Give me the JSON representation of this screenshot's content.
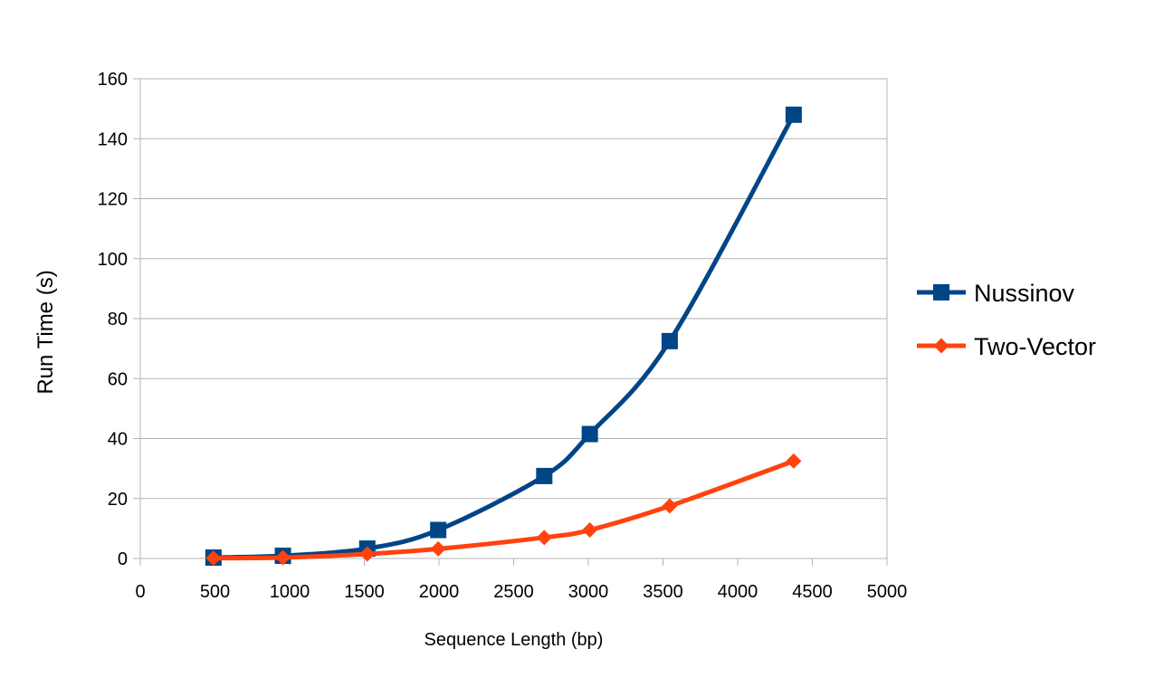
{
  "chart_data": {
    "type": "line",
    "title": "",
    "xlabel": "Sequence Length (bp)",
    "ylabel": "Run Time (s)",
    "xlim": [
      0,
      5000
    ],
    "ylim": [
      0,
      160
    ],
    "xticks": [
      0,
      500,
      1000,
      1500,
      2000,
      2500,
      3000,
      3500,
      4000,
      4500,
      5000
    ],
    "yticks": [
      0,
      20,
      40,
      60,
      80,
      100,
      120,
      140,
      160
    ],
    "grid": "horizontal",
    "legend_position": "right",
    "series": [
      {
        "name": "Nussinov",
        "color": "#004586",
        "marker": "square",
        "x": [
          490,
          955,
          1520,
          1995,
          2705,
          3010,
          3545,
          4375
        ],
        "y": [
          0.3,
          0.9,
          3.3,
          9.5,
          27.5,
          41.5,
          72.5,
          148
        ]
      },
      {
        "name": "Two-Vector",
        "color": "#ff420e",
        "marker": "diamond",
        "x": [
          490,
          955,
          1520,
          1995,
          2705,
          3010,
          3545,
          4375
        ],
        "y": [
          0.1,
          0.3,
          1.5,
          3.2,
          7.0,
          9.5,
          17.5,
          32.5
        ]
      }
    ]
  }
}
